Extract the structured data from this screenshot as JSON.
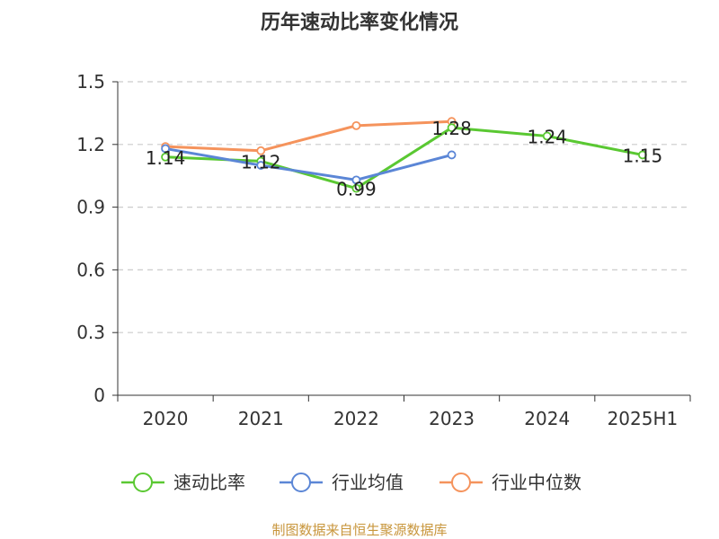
{
  "colors": {
    "速动比率": "#5ac832",
    "行业均值": "#5b86d6",
    "行业中位数": "#f5935c"
  },
  "source_text": "制图数据来自恒生聚源数据库",
  "chart_data": {
    "type": "line",
    "title": "历年速动比率变化情况",
    "xlabel": "",
    "ylabel": "",
    "categories": [
      "2020",
      "2021",
      "2022",
      "2023",
      "2024",
      "2025H1"
    ],
    "ylim": [
      0,
      1.5
    ],
    "yticks": [
      "0",
      "0.3",
      "0.6",
      "0.9",
      "1.2",
      "1.5"
    ],
    "grid": "horizontal dashed",
    "legend_position": "bottom",
    "series": [
      {
        "name": "速动比率",
        "values": [
          1.14,
          1.12,
          0.99,
          1.28,
          1.24,
          1.15
        ],
        "labels": [
          "1.14",
          "1.12",
          "0.99",
          "1.28",
          "1.24",
          "1.15"
        ]
      },
      {
        "name": "行业均值",
        "values": [
          1.18,
          1.1,
          1.03,
          1.15,
          null,
          null
        ]
      },
      {
        "name": "行业中位数",
        "values": [
          1.19,
          1.17,
          1.29,
          1.31,
          null,
          null
        ]
      }
    ]
  }
}
